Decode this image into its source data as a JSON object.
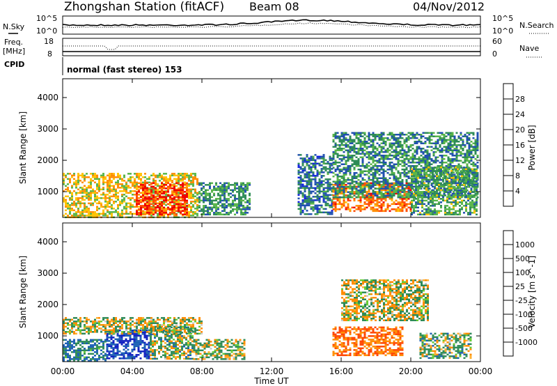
{
  "header": {
    "station": "Zhongshan Station (fitACF)",
    "beam": "Beam 08",
    "date": "04/Nov/2012"
  },
  "left_labels": {
    "nsky": "N.Sky",
    "freq": "Freq.",
    "freq_unit": "[MHz]",
    "cpid": "CPID"
  },
  "right_labels": {
    "nsearch": "N.Search",
    "nave": "Nave"
  },
  "noise_ticks": {
    "top_left": "10^5",
    "bottom_left": "10^0",
    "top_right": "10^5",
    "bottom_right": "10^0"
  },
  "freq_ticks": {
    "left_top": "18",
    "left_bottom": "8",
    "right_top": "60",
    "right_bottom": "0"
  },
  "mode_text": "normal (fast stereo) 153",
  "colors": {
    "power_scale": [
      "#1020e0",
      "#2050b0",
      "#2e8b57",
      "#58b548",
      "#ffc200",
      "#ff8c00",
      "#ff4a00",
      "#ee0000"
    ],
    "velocity_scale": [
      "#ee0000",
      "#ff4500",
      "#ff8c00",
      "#ffb030",
      "#c8c8c8",
      "#66cc33",
      "#2e8b57",
      "#1a5fb4",
      "#1020c0"
    ]
  },
  "chart_data": [
    {
      "type": "heatmap",
      "name": "power",
      "ylabel": "Slant Range [km]",
      "y_ticks": [
        "1000",
        "2000",
        "3000",
        "4000"
      ],
      "ylim": [
        180,
        4600
      ],
      "colorbar": {
        "label": "Power [dB]",
        "ticks": [
          "4",
          "8",
          "12",
          "16",
          "20",
          "24",
          "28"
        ],
        "range": [
          0,
          32
        ]
      },
      "regions": [
        {
          "t0": 0.0,
          "t1": 7.8,
          "r0": 200,
          "r1": 1600,
          "value": 18
        },
        {
          "t0": 4.2,
          "t1": 7.2,
          "r0": 300,
          "r1": 1300,
          "value": 28
        },
        {
          "t0": 7.8,
          "t1": 10.8,
          "r0": 250,
          "r1": 1300,
          "value": 10
        },
        {
          "t0": 13.5,
          "t1": 15.5,
          "r0": 300,
          "r1": 2200,
          "value": 8
        },
        {
          "t0": 15.5,
          "t1": 20.0,
          "r0": 400,
          "r1": 1300,
          "value": 24
        },
        {
          "t0": 15.5,
          "t1": 23.8,
          "r0": 800,
          "r1": 2900,
          "value": 10
        },
        {
          "t0": 20.0,
          "t1": 23.8,
          "r0": 300,
          "r1": 1800,
          "value": 12
        }
      ]
    },
    {
      "type": "heatmap",
      "name": "velocity",
      "ylabel": "Slant Range [km]",
      "xlabel": "Time UT",
      "y_ticks": [
        "1000",
        "2000",
        "3000",
        "4000"
      ],
      "ylim": [
        180,
        4600
      ],
      "x_ticks": [
        "00:00",
        "04:00",
        "08:00",
        "12:00",
        "16:00",
        "20:00",
        "00:00"
      ],
      "xlim": [
        0,
        24
      ],
      "colorbar": {
        "label": "Velocity [m s^-1]",
        "ticks": [
          "-1000",
          "-500",
          "-100",
          "-25",
          "25",
          "100",
          "500",
          "1000"
        ]
      },
      "regions": [
        {
          "t0": 0.0,
          "t1": 2.5,
          "r0": 200,
          "r1": 900,
          "value": 300
        },
        {
          "t0": 2.5,
          "t1": 5.0,
          "r0": 300,
          "r1": 1200,
          "value": 700
        },
        {
          "t0": 5.0,
          "t1": 7.5,
          "r0": 300,
          "r1": 1300,
          "value": 100
        },
        {
          "t0": 7.5,
          "t1": 10.5,
          "r0": 250,
          "r1": 900,
          "value": 50
        },
        {
          "t0": 0.0,
          "t1": 8.0,
          "r0": 1100,
          "r1": 1600,
          "value": 0
        },
        {
          "t0": 15.5,
          "t1": 19.5,
          "r0": 400,
          "r1": 1300,
          "value": -300
        },
        {
          "t0": 16.0,
          "t1": 21.0,
          "r0": 1500,
          "r1": 2800,
          "value": 0
        },
        {
          "t0": 20.5,
          "t1": 23.5,
          "r0": 300,
          "r1": 1100,
          "value": 100
        }
      ]
    }
  ]
}
